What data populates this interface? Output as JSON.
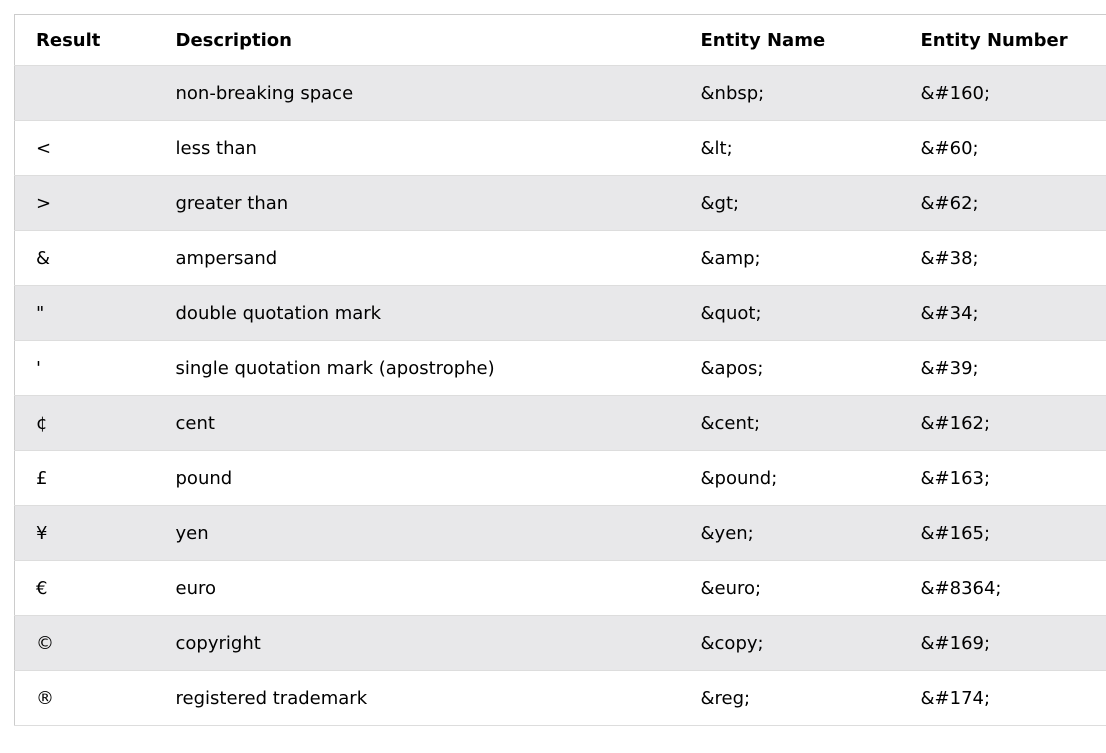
{
  "table": {
    "headers": [
      "Result",
      "Description",
      "Entity Name",
      "Entity Number"
    ],
    "rows": [
      {
        "result": " ",
        "description": "non-breaking space",
        "entity_name": "&nbsp;",
        "entity_number": "&#160;"
      },
      {
        "result": "<",
        "description": "less than",
        "entity_name": "&lt;",
        "entity_number": "&#60;"
      },
      {
        "result": ">",
        "description": "greater than",
        "entity_name": "&gt;",
        "entity_number": "&#62;"
      },
      {
        "result": "&",
        "description": "ampersand",
        "entity_name": "&amp;",
        "entity_number": "&#38;"
      },
      {
        "result": "\"",
        "description": "double quotation mark",
        "entity_name": "&quot;",
        "entity_number": "&#34;"
      },
      {
        "result": "'",
        "description": "single quotation mark (apostrophe)",
        "entity_name": "&apos;",
        "entity_number": "&#39;"
      },
      {
        "result": "¢",
        "description": "cent",
        "entity_name": "&cent;",
        "entity_number": "&#162;"
      },
      {
        "result": "£",
        "description": "pound",
        "entity_name": "&pound;",
        "entity_number": "&#163;"
      },
      {
        "result": "¥",
        "description": "yen",
        "entity_name": "&yen;",
        "entity_number": "&#165;"
      },
      {
        "result": "€",
        "description": "euro",
        "entity_name": "&euro;",
        "entity_number": "&#8364;"
      },
      {
        "result": "©",
        "description": "copyright",
        "entity_name": "&copy;",
        "entity_number": "&#169;"
      },
      {
        "result": "®",
        "description": "registered trademark",
        "entity_name": "&reg;",
        "entity_number": "&#174;"
      }
    ]
  },
  "colors": {
    "stripe": "#e8e8ea",
    "border": "#dddddd"
  }
}
